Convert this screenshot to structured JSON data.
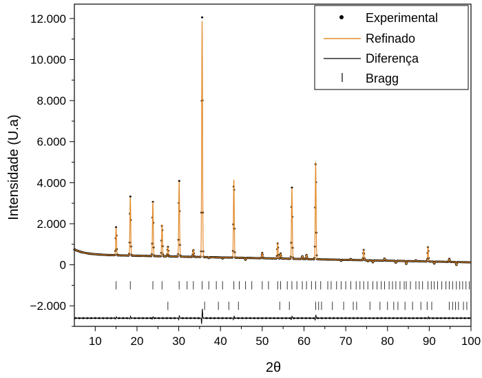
{
  "chart_data": {
    "type": "line",
    "title": "",
    "xlabel": "2θ",
    "ylabel": "Intensidade (U.a)",
    "xlim": [
      5,
      100
    ],
    "ylim": [
      -3000,
      12700
    ],
    "x_ticks": [
      10,
      20,
      30,
      40,
      50,
      60,
      70,
      80,
      90,
      100
    ],
    "y_ticks": [
      -2000,
      0,
      2000,
      4000,
      6000,
      8000,
      10000,
      12000
    ],
    "y_tick_labels": [
      "−2.000",
      "0",
      "2.000",
      "4.000",
      "6.000",
      "8.000",
      "10.000",
      "12.000"
    ],
    "grid": false,
    "legend": {
      "position": "top-right",
      "entries": [
        "Experimental",
        "Refinado",
        "Diferença",
        "Bragg"
      ]
    },
    "background": {
      "start": 500,
      "end": 120
    },
    "peaks": [
      {
        "x": 15.0,
        "height": 1700
      },
      {
        "x": 18.4,
        "height": 3200
      },
      {
        "x": 23.8,
        "height": 3000
      },
      {
        "x": 26.0,
        "height": 1900
      },
      {
        "x": 27.4,
        "height": 800
      },
      {
        "x": 30.1,
        "height": 4000
      },
      {
        "x": 33.5,
        "height": 700
      },
      {
        "x": 35.6,
        "height": 11850
      },
      {
        "x": 37.2,
        "height": 300
      },
      {
        "x": 39.0,
        "height": 350
      },
      {
        "x": 40.5,
        "height": 300
      },
      {
        "x": 43.2,
        "height": 4150
      },
      {
        "x": 46.0,
        "height": 250
      },
      {
        "x": 50.0,
        "height": 600
      },
      {
        "x": 53.7,
        "height": 1100
      },
      {
        "x": 54.4,
        "height": 600
      },
      {
        "x": 57.1,
        "height": 3800
      },
      {
        "x": 59.6,
        "height": 500
      },
      {
        "x": 60.6,
        "height": 550
      },
      {
        "x": 62.8,
        "height": 5100
      },
      {
        "x": 65.7,
        "height": 350
      },
      {
        "x": 68.9,
        "height": 300
      },
      {
        "x": 71.2,
        "height": 400
      },
      {
        "x": 74.3,
        "height": 850
      },
      {
        "x": 75.3,
        "height": 300
      },
      {
        "x": 76.5,
        "height": 250
      },
      {
        "x": 79.3,
        "height": 450
      },
      {
        "x": 82.0,
        "height": 250
      },
      {
        "x": 84.5,
        "height": 200
      },
      {
        "x": 86.8,
        "height": 400
      },
      {
        "x": 89.7,
        "height": 1050
      },
      {
        "x": 91.2,
        "height": 250
      },
      {
        "x": 94.8,
        "height": 500
      },
      {
        "x": 96.5,
        "height": 200
      }
    ],
    "difference_baseline": -2600,
    "difference_spikes": [
      {
        "x": 35.6,
        "amplitude": 450
      },
      {
        "x": 30.1,
        "amplitude": 120
      },
      {
        "x": 43.2,
        "amplitude": 100
      },
      {
        "x": 57.1,
        "amplitude": 100
      },
      {
        "x": 62.8,
        "amplitude": 150
      },
      {
        "x": 15.0,
        "amplitude": 60
      },
      {
        "x": 18.4,
        "amplitude": 80
      },
      {
        "x": 23.8,
        "amplitude": 70
      },
      {
        "x": 89.7,
        "amplitude": 60
      }
    ],
    "bragg_row1": {
      "y": -1000,
      "positions": [
        15.0,
        18.4,
        23.8,
        26.0,
        30.1,
        32.0,
        33.5,
        35.6,
        37.2,
        39.0,
        40.5,
        43.2,
        44.5,
        46.0,
        47.5,
        50.0,
        51.5,
        53.7,
        54.4,
        56.0,
        57.1,
        58.3,
        59.6,
        60.6,
        61.8,
        62.8,
        64.0,
        65.7,
        66.5,
        67.8,
        68.9,
        70.0,
        71.2,
        72.5,
        73.4,
        74.3,
        75.3,
        76.5,
        77.5,
        78.5,
        79.3,
        80.4,
        81.2,
        82.0,
        83.0,
        84.0,
        84.5,
        85.5,
        86.8,
        87.6,
        88.4,
        89.7,
        90.5,
        91.2,
        92.0,
        93.0,
        94.0,
        94.8,
        95.6,
        96.5,
        97.3,
        98.0,
        98.8,
        99.6
      ]
    },
    "bragg_row2": {
      "y": -2000,
      "positions": [
        27.4,
        36.2,
        39.5,
        42.0,
        44.3,
        54.2,
        56.5,
        62.8,
        63.5,
        64.2,
        66.8,
        69.5,
        71.8,
        72.6,
        75.8,
        78.2,
        80.0,
        81.5,
        82.5,
        84.2,
        86.0,
        88.0,
        89.5,
        90.6,
        94.8,
        95.6,
        96.3,
        97.0,
        98.2,
        99.0
      ]
    }
  }
}
